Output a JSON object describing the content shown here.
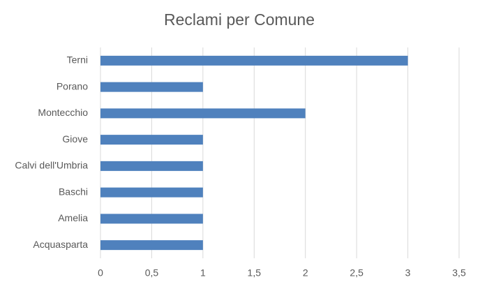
{
  "chart_data": {
    "type": "bar",
    "orientation": "horizontal",
    "title": "Reclami per Comune",
    "categories": [
      "Terni",
      "Porano",
      "Montecchio",
      "Giove",
      "Calvi dell'Umbria",
      "Baschi",
      "Amelia",
      "Acquasparta"
    ],
    "values": [
      3,
      1,
      2,
      1,
      1,
      1,
      1,
      1
    ],
    "color": "#4f81bd",
    "xlim": [
      0,
      3.5
    ],
    "xticks": [
      0,
      {
        "value": 0.5,
        "label": "0,5"
      },
      1,
      {
        "value": 1.5,
        "label": "1,5"
      },
      2,
      {
        "value": 2.5,
        "label": "2,5"
      },
      3,
      {
        "value": 3.5,
        "label": "3,5"
      }
    ],
    "grid": true
  }
}
